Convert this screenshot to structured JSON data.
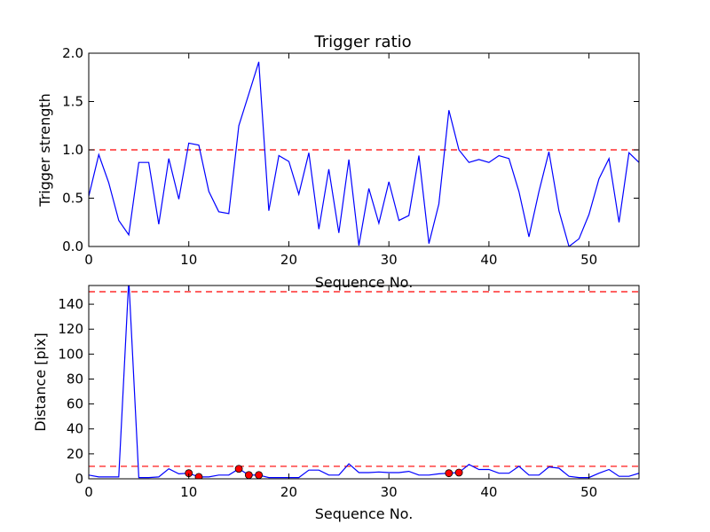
{
  "chart_data": [
    {
      "type": "line",
      "title": "Trigger ratio",
      "xlabel": "Sequence No.",
      "ylabel": "Trigger strength",
      "xlim": [
        0,
        55
      ],
      "ylim": [
        0,
        2.0
      ],
      "xticks": [
        0,
        10,
        20,
        30,
        40,
        50
      ],
      "xtick_labels": [
        "0",
        "10",
        "20",
        "30",
        "40",
        "50"
      ],
      "yticks": [
        0,
        0.5,
        1.0,
        1.5,
        2.0
      ],
      "ytick_labels": [
        "0.0",
        "0.5",
        "1.0",
        "1.5",
        "2.0"
      ],
      "grid": false,
      "reference_lines": [
        {
          "y": 1.0,
          "color": "#ff0000",
          "style": "dashed"
        }
      ],
      "series": [
        {
          "color": "#0000ff",
          "x": [
            0,
            1,
            2,
            3,
            4,
            5,
            6,
            7,
            8,
            9,
            10,
            11,
            12,
            13,
            14,
            15,
            16,
            17,
            18,
            19,
            20,
            21,
            22,
            23,
            24,
            25,
            26,
            27,
            28,
            29,
            30,
            31,
            32,
            33,
            34,
            35,
            36,
            37,
            38,
            39,
            40,
            41,
            42,
            43,
            44,
            45,
            46,
            47,
            48,
            49,
            50,
            51,
            52,
            53,
            54,
            55
          ],
          "values": [
            0.52,
            0.95,
            0.66,
            0.27,
            0.12,
            0.87,
            0.87,
            0.23,
            0.91,
            0.49,
            1.07,
            1.05,
            0.57,
            0.36,
            0.34,
            1.25,
            1.58,
            1.91,
            0.37,
            0.94,
            0.88,
            0.54,
            0.97,
            0.18,
            0.8,
            0.14,
            0.9,
            0.01,
            0.6,
            0.24,
            0.67,
            0.27,
            0.32,
            0.94,
            0.03,
            0.44,
            1.41,
            1.0,
            0.87,
            0.9,
            0.87,
            0.94,
            0.91,
            0.57,
            0.1,
            0.57,
            0.98,
            0.37,
            0.0,
            0.08,
            0.33,
            0.7,
            0.91,
            0.25,
            0.97,
            0.87
          ]
        }
      ]
    },
    {
      "type": "line",
      "title": "",
      "xlabel": "Sequence No.",
      "ylabel": "Distance [pix]",
      "xlim": [
        0,
        55
      ],
      "ylim": [
        0,
        155
      ],
      "xticks": [
        0,
        10,
        20,
        30,
        40,
        50
      ],
      "xtick_labels": [
        "0",
        "10",
        "20",
        "30",
        "40",
        "50"
      ],
      "yticks": [
        0,
        20,
        40,
        60,
        80,
        100,
        120,
        140
      ],
      "ytick_labels": [
        "0",
        "20",
        "40",
        "60",
        "80",
        "100",
        "120",
        "140"
      ],
      "grid": false,
      "reference_lines": [
        {
          "y": 150,
          "color": "#ff0000",
          "style": "dashed"
        },
        {
          "y": 10,
          "color": "#ff0000",
          "style": "dashed"
        }
      ],
      "series": [
        {
          "color": "#0000ff",
          "x": [
            0,
            1,
            2,
            3,
            4,
            5,
            6,
            7,
            8,
            9,
            10,
            11,
            12,
            13,
            14,
            15,
            16,
            17,
            18,
            19,
            20,
            21,
            22,
            23,
            24,
            25,
            26,
            27,
            28,
            29,
            30,
            31,
            32,
            33,
            34,
            35,
            36,
            37,
            38,
            39,
            40,
            41,
            42,
            43,
            44,
            45,
            46,
            47,
            48,
            49,
            50,
            51,
            52,
            53,
            54,
            55
          ],
          "values": [
            3,
            1.5,
            1.5,
            1.5,
            160,
            1,
            1,
            1.5,
            8,
            4,
            4.5,
            1.5,
            1.5,
            3,
            3,
            8,
            3,
            3,
            1,
            1,
            1,
            1,
            7,
            7,
            3,
            3,
            12,
            5,
            5,
            5.5,
            5,
            5,
            6,
            3,
            3,
            4,
            4.5,
            5,
            11.5,
            7.5,
            7.5,
            4.5,
            4.5,
            10,
            3,
            3,
            9.5,
            8.5,
            2,
            1,
            1,
            4.5,
            7.5,
            2,
            2,
            4.5
          ]
        },
        {
          "name": "",
          "type": "scatter",
          "color": "#ff0000",
          "x": [
            10,
            11,
            15,
            16,
            17,
            36,
            37
          ],
          "values": [
            4.5,
            1.5,
            8,
            3,
            3,
            4.5,
            5
          ]
        }
      ]
    }
  ]
}
